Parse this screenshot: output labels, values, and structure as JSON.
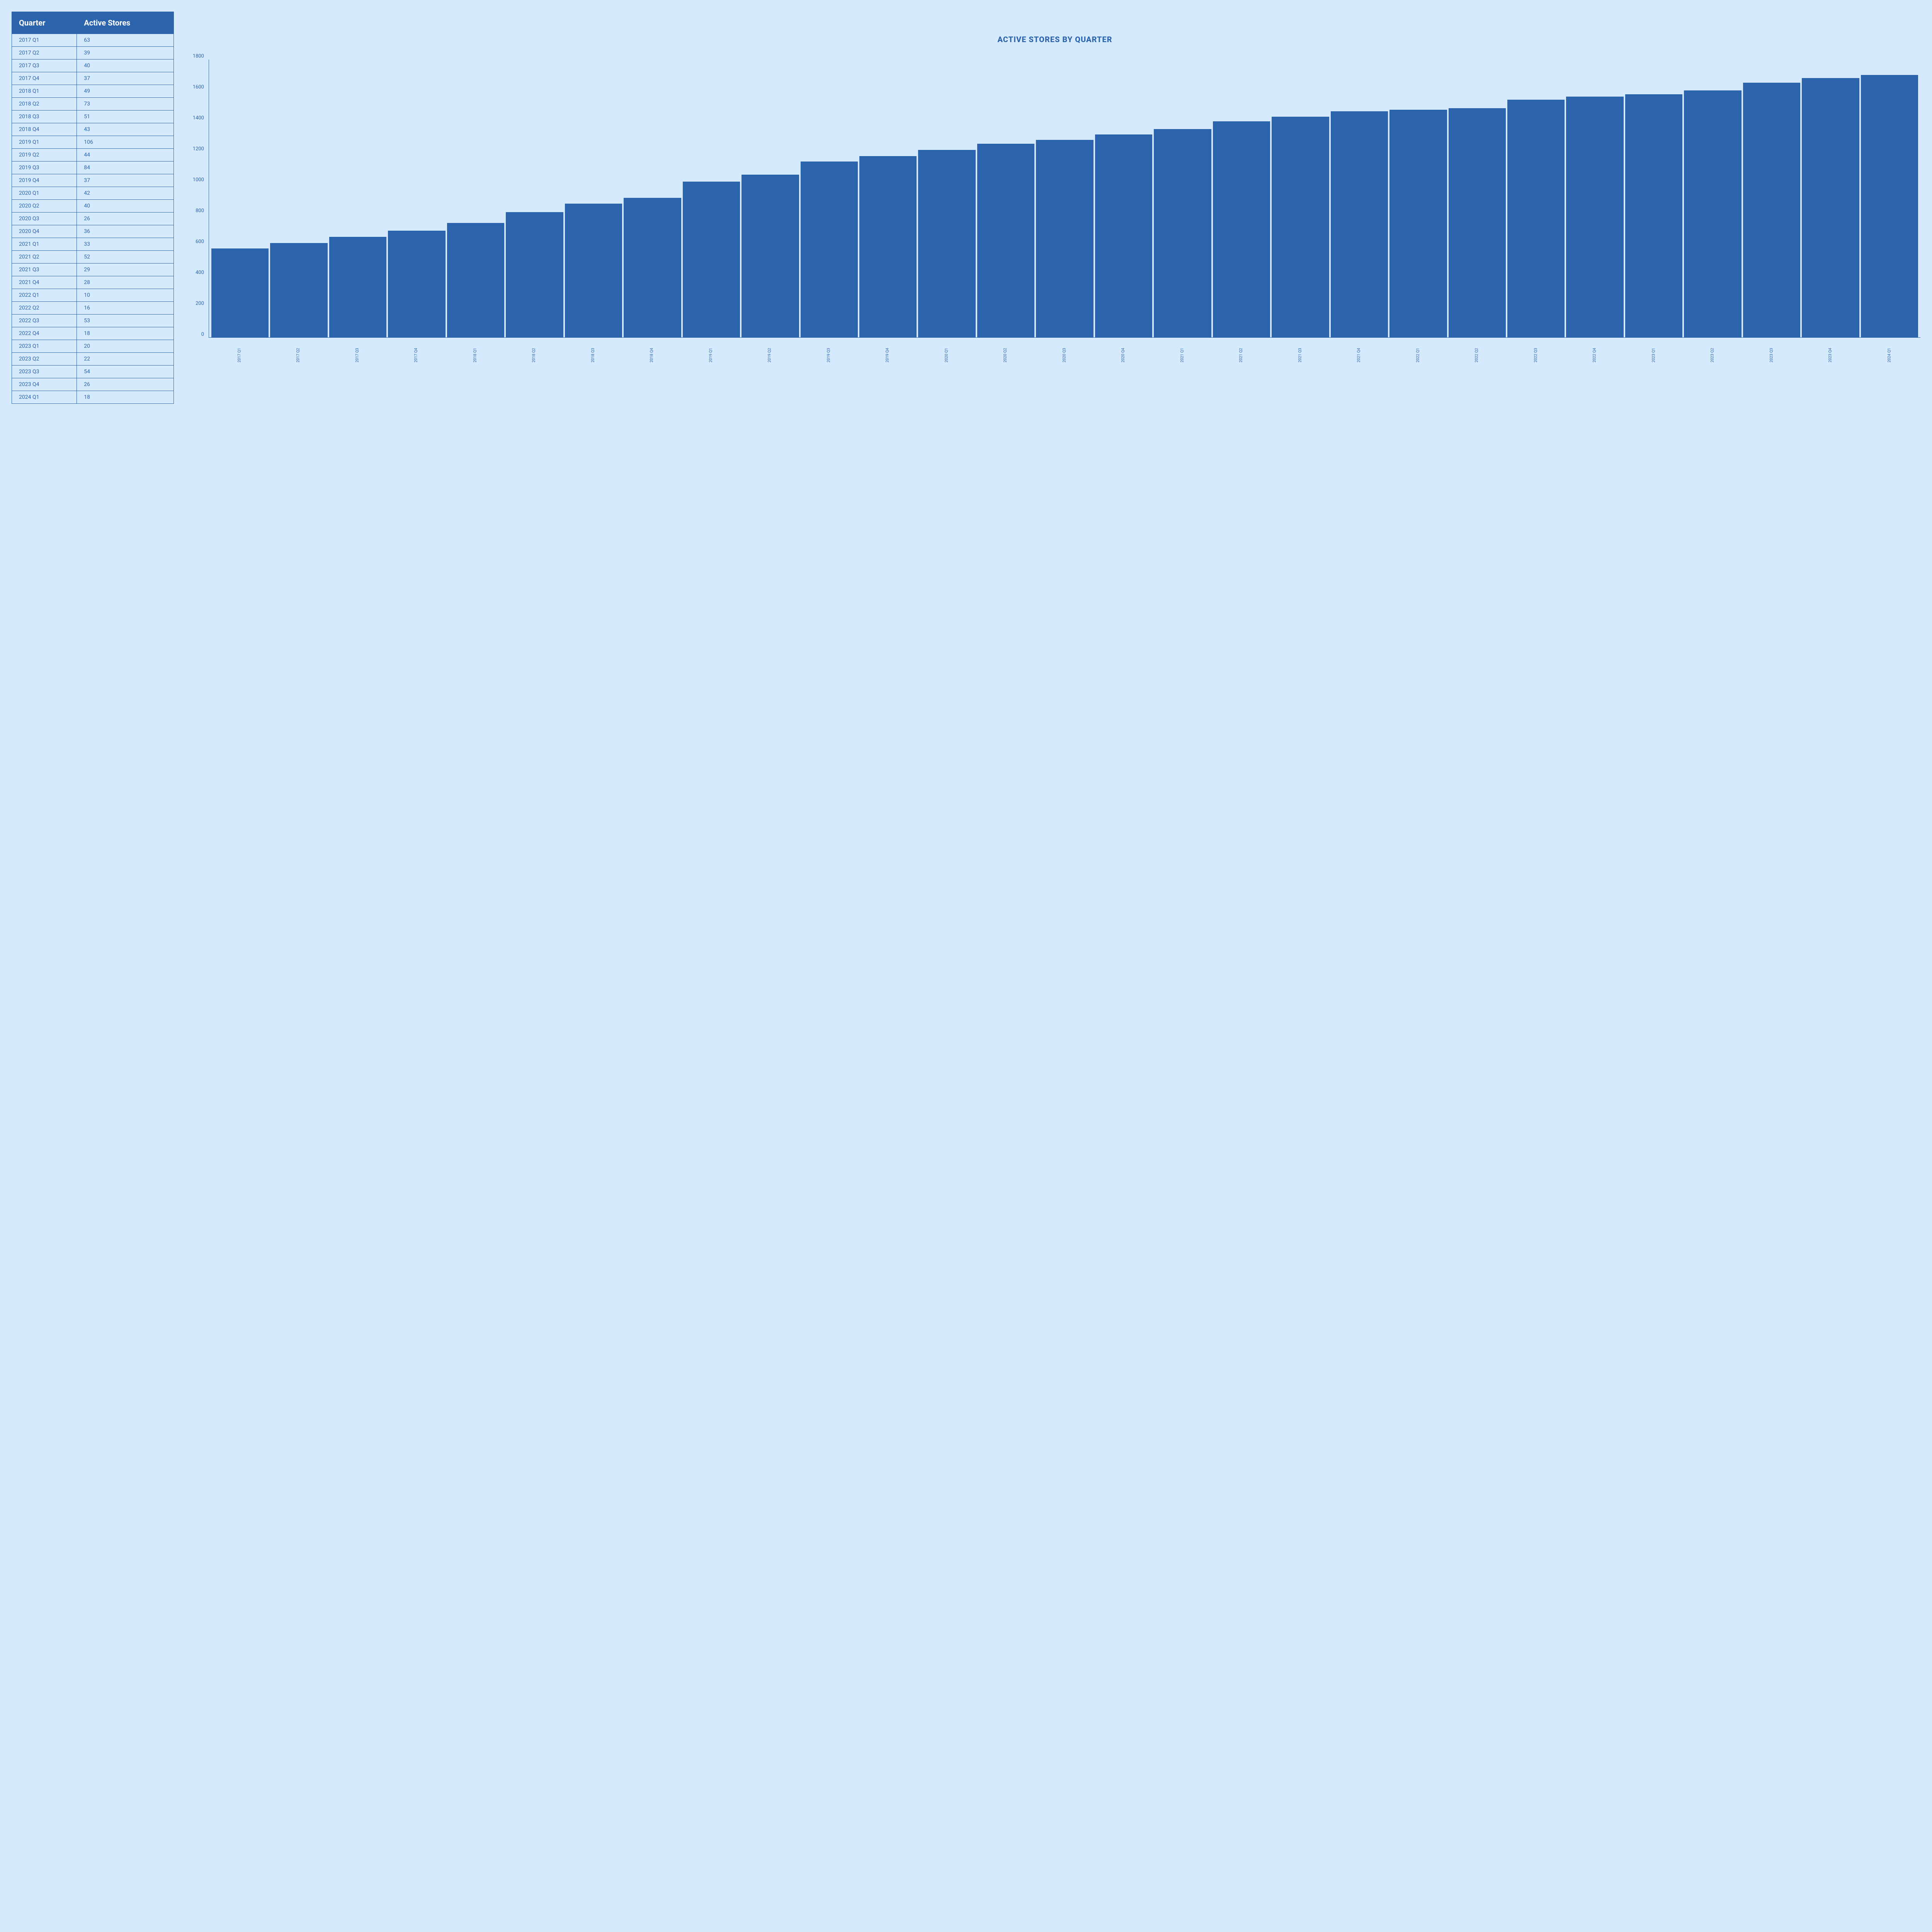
{
  "table": {
    "columns": [
      "Quarter",
      "Active Stores"
    ],
    "rows": [
      [
        "2017 Q1",
        "63"
      ],
      [
        "2017 Q2",
        "39"
      ],
      [
        "2017 Q3",
        "40"
      ],
      [
        "2017 Q4",
        "37"
      ],
      [
        "2018 Q1",
        "49"
      ],
      [
        "2018 Q2",
        "73"
      ],
      [
        "2018 Q3",
        "51"
      ],
      [
        "2018 Q4",
        "43"
      ],
      [
        "2019 Q1",
        "106"
      ],
      [
        "2019 Q2",
        "44"
      ],
      [
        "2019 Q3",
        "84"
      ],
      [
        "2019 Q4",
        "37"
      ],
      [
        "2020 Q1",
        "42"
      ],
      [
        "2020 Q2",
        "40"
      ],
      [
        "2020 Q3",
        "26"
      ],
      [
        "2020 Q4",
        "36"
      ],
      [
        "2021 Q1",
        "33"
      ],
      [
        "2021 Q2",
        "52"
      ],
      [
        "2021 Q3",
        "29"
      ],
      [
        "2021 Q4",
        "28"
      ],
      [
        "2022 Q1",
        "10"
      ],
      [
        "2022 Q2",
        "16"
      ],
      [
        "2022 Q3",
        "53"
      ],
      [
        "2022 Q4",
        "18"
      ],
      [
        "2023 Q1",
        "20"
      ],
      [
        "2023 Q2",
        "22"
      ],
      [
        "2023 Q3",
        "54"
      ],
      [
        "2023 Q4",
        "26"
      ],
      [
        "2024 Q1",
        "18"
      ]
    ]
  },
  "chart": {
    "type": "bar",
    "title": "ACTIVE STORES BY QUARTER",
    "categories": [
      "2017 Q1",
      "2017 Q2",
      "2017 Q3",
      "2017 Q4",
      "2018 Q1",
      "2018 Q2",
      "2018 Q3",
      "2018 Q4",
      "2019 Q1",
      "2019 Q2",
      "2019 Q3",
      "2019 Q4",
      "2020 Q1",
      "2020 Q2",
      "2020 Q3",
      "2020 Q4",
      "2021 Q1",
      "2021 Q2",
      "2021 Q3",
      "2021 Q4",
      "2022 Q1",
      "2022 Q2",
      "2022 Q3",
      "2022 Q4",
      "2023 Q1",
      "2023 Q2",
      "2023 Q3",
      "2023 Q4",
      "2024 Q1"
    ],
    "values": [
      575,
      610,
      650,
      690,
      740,
      810,
      865,
      905,
      1010,
      1055,
      1140,
      1175,
      1215,
      1255,
      1280,
      1315,
      1350,
      1400,
      1430,
      1465,
      1475,
      1485,
      1540,
      1560,
      1575,
      1600,
      1650,
      1680,
      1700
    ],
    "bar_color": "#2b63ac",
    "ylim": [
      0,
      1800
    ],
    "yticks": [
      1800,
      1600,
      1400,
      1200,
      1000,
      800,
      600,
      400,
      200,
      0
    ],
    "title_fontsize": 20,
    "label_fontsize": 10,
    "tick_fontsize": 13,
    "background_color": "#d6eafd",
    "axis_color": "#2b63ac",
    "text_color": "#2b63ac",
    "header_bg": "#2b63ac",
    "header_fg": "#ffffff"
  }
}
